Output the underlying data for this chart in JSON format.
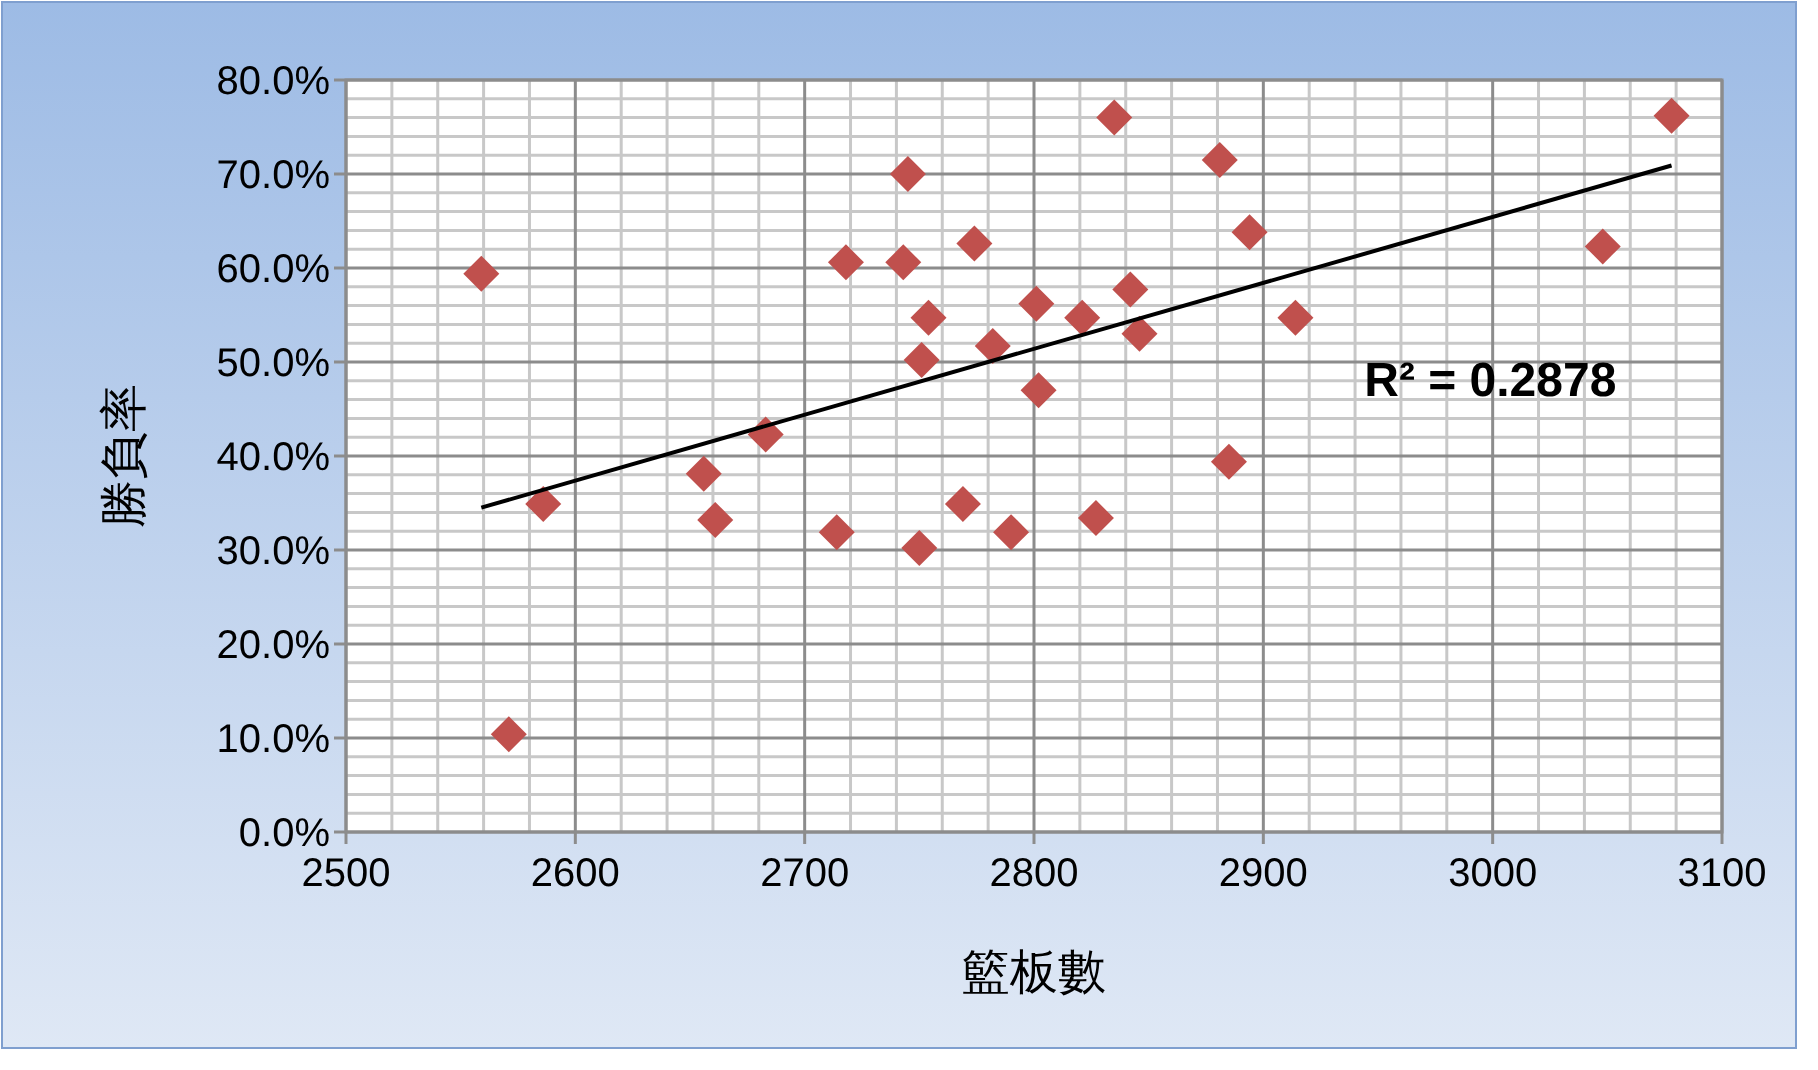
{
  "chart_data": {
    "type": "scatter",
    "xlabel": "籃板數",
    "ylabel": "勝負率",
    "grid": true,
    "xlim": [
      2500,
      3100
    ],
    "xticks": [
      2500,
      2600,
      2700,
      2800,
      2900,
      3000,
      3100
    ],
    "ylim": [
      0,
      80
    ],
    "yticks": [
      {
        "value": 0,
        "label": "0.0%"
      },
      {
        "value": 10,
        "label": "10.0%"
      },
      {
        "value": 20,
        "label": "20.0%"
      },
      {
        "value": 30,
        "label": "30.0%"
      },
      {
        "value": 40,
        "label": "40.0%"
      },
      {
        "value": 50,
        "label": "50.0%"
      },
      {
        "value": 60,
        "label": "60.0%"
      },
      {
        "value": 70,
        "label": "70.0%"
      },
      {
        "value": 80,
        "label": "80.0%"
      }
    ],
    "annotations": [
      "R² = 0.2878"
    ],
    "series": [
      {
        "marker": "diamond",
        "color": "#c0504d",
        "x": [
          2559,
          2571,
          2586,
          2656,
          2661,
          2683,
          2714,
          2718,
          2743,
          2745,
          2750,
          2751,
          2754,
          2774,
          2769,
          2782,
          2790,
          2801,
          2802,
          2821,
          2827,
          2835,
          2842,
          2846,
          2881,
          2885,
          2894,
          2914,
          3048,
          3078
        ],
        "values": [
          59.4,
          10.4,
          34.9,
          38.1,
          33.2,
          42.3,
          31.9,
          60.6,
          60.6,
          70.0,
          30.2,
          50.2,
          54.7,
          62.6,
          34.9,
          51.7,
          31.9,
          56.2,
          47.0,
          54.7,
          33.4,
          76.0,
          57.7,
          53.0,
          71.5,
          39.4,
          63.8,
          54.7,
          62.3,
          76.2
        ]
      },
      {
        "type": "line",
        "marker": "none",
        "color": "#000000",
        "x": [
          2559,
          3078
        ],
        "values": [
          34.5,
          70.9
        ]
      }
    ]
  }
}
